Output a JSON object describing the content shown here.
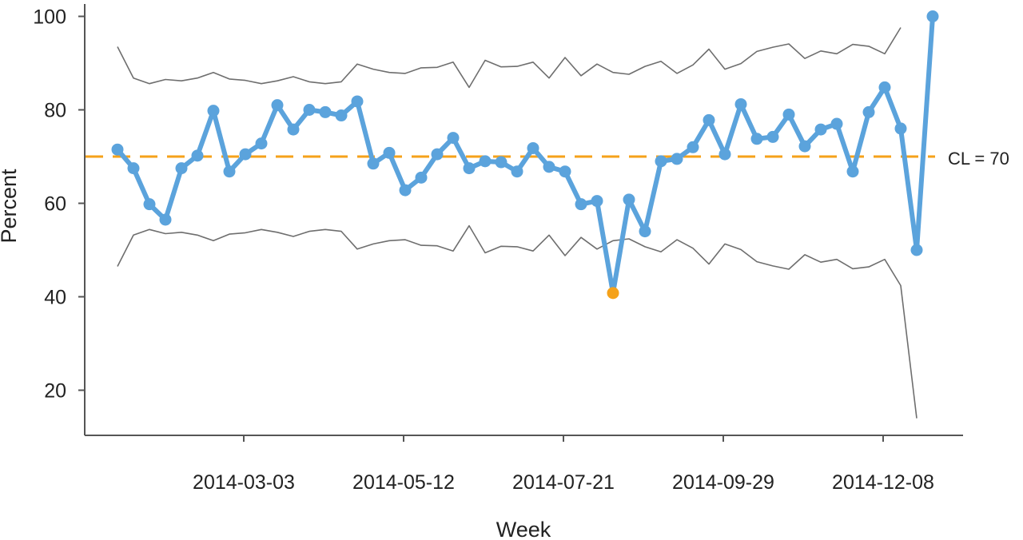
{
  "chart_data": {
    "type": "line",
    "title": "",
    "xlabel": "Week",
    "ylabel": "Percent",
    "ylim": [
      10,
      103
    ],
    "yticks": [
      20,
      40,
      60,
      80,
      100
    ],
    "x_tick_labels": [
      "2014-03-03",
      "2014-05-12",
      "2014-07-21",
      "2014-09-29",
      "2014-12-08"
    ],
    "x_tick_weeks": [
      8,
      18,
      28,
      38,
      48
    ],
    "weeks": [
      0,
      1,
      2,
      3,
      4,
      5,
      6,
      7,
      8,
      9,
      10,
      11,
      12,
      13,
      14,
      15,
      16,
      17,
      18,
      19,
      20,
      21,
      22,
      23,
      24,
      25,
      26,
      27,
      28,
      29,
      30,
      31,
      32,
      33,
      34,
      35,
      36,
      37,
      38,
      39,
      40,
      41,
      42,
      43,
      44,
      45,
      46,
      47,
      48,
      49,
      50,
      51
    ],
    "center_line": {
      "value": 70,
      "label": "CL = 70"
    },
    "series": [
      {
        "role": "percent",
        "values": [
          71.5,
          67.5,
          59.8,
          56.5,
          67.5,
          70.2,
          79.8,
          66.8,
          70.5,
          72.8,
          81.0,
          75.8,
          80.0,
          79.5,
          78.8,
          81.8,
          68.5,
          70.8,
          62.8,
          65.5,
          70.5,
          74.0,
          67.5,
          69.0,
          68.8,
          66.8,
          71.8,
          67.8,
          66.8,
          59.8,
          60.5,
          40.8,
          60.8,
          54.0,
          69.0,
          69.5,
          72.0,
          77.8,
          70.5,
          81.2,
          73.8,
          74.2,
          79.0,
          72.2,
          75.8,
          77.0,
          66.8,
          79.5,
          84.8,
          76.0,
          50.0,
          100.0
        ],
        "special_points": [
          {
            "week": 31,
            "value": 40.8
          }
        ]
      },
      {
        "role": "upper-control-limit",
        "values": [
          93.5,
          86.8,
          85.6,
          86.5,
          86.2,
          86.8,
          88.0,
          86.6,
          86.3,
          85.6,
          86.2,
          87.1,
          86.0,
          85.6,
          86.0,
          89.8,
          88.7,
          88.0,
          87.8,
          89.0,
          89.1,
          90.2,
          84.8,
          90.6,
          89.2,
          89.3,
          90.2,
          86.8,
          91.2,
          87.3,
          89.8,
          88.0,
          87.6,
          89.3,
          90.4,
          87.8,
          89.6,
          93.0,
          88.7,
          89.9,
          92.5,
          93.4,
          94.1,
          91.0,
          92.6,
          92.0,
          94.0,
          93.6,
          92.0,
          97.6
        ],
        "values_end_week": 49
      },
      {
        "role": "lower-control-limit",
        "values": [
          46.5,
          53.2,
          54.4,
          53.5,
          53.8,
          53.2,
          52.0,
          53.4,
          53.7,
          54.4,
          53.8,
          52.9,
          54.0,
          54.4,
          54.0,
          50.2,
          51.3,
          52.0,
          52.2,
          51.0,
          50.9,
          49.8,
          55.2,
          49.4,
          50.8,
          50.7,
          49.8,
          53.2,
          48.8,
          52.7,
          50.2,
          52.0,
          52.4,
          50.7,
          49.6,
          52.2,
          50.4,
          47.0,
          51.3,
          50.1,
          47.5,
          46.6,
          45.9,
          49.0,
          47.4,
          48.0,
          46.0,
          46.4,
          48.0,
          42.4,
          14.0
        ],
        "values_end_week": 50
      }
    ],
    "colors": {
      "series": "#5ba3dc",
      "special_point": "#f5a21a",
      "center_line": "#f5a21a",
      "limits": "#6e6e6e",
      "axis": "#555555"
    },
    "grid": false,
    "legend": "none"
  }
}
